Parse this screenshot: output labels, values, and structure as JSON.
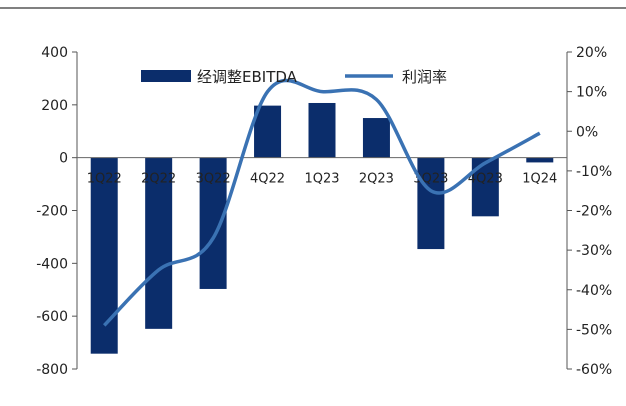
{
  "chart_data": {
    "type": "bar",
    "categories": [
      "1Q22",
      "2Q22",
      "3Q22",
      "4Q22",
      "1Q23",
      "2Q23",
      "3Q23",
      "4Q23",
      "1Q24"
    ],
    "series": [
      {
        "name": "经调整EBITDA",
        "type": "bar",
        "axis": "left",
        "color": "#0b2d6b",
        "values": [
          -742,
          -648,
          -497,
          197,
          207,
          150,
          -346,
          -222,
          -18
        ]
      },
      {
        "name": "利润率",
        "type": "line",
        "axis": "right",
        "color": "#3a72b3",
        "values": [
          -49,
          -35,
          -27,
          10,
          10,
          8,
          -15,
          -8,
          -0.5
        ]
      }
    ],
    "ylim": [
      -800,
      400
    ],
    "yticks": [
      "400",
      "200",
      "0",
      "-200",
      "-400",
      "-600",
      "-800"
    ],
    "y2lim": [
      -60,
      20
    ],
    "y2ticks": [
      "20%",
      "10%",
      "0%",
      "-10%",
      "-20%",
      "-30%",
      "-40%",
      "-50%",
      "-60%"
    ],
    "legend_position": "top-center",
    "grid": false
  }
}
